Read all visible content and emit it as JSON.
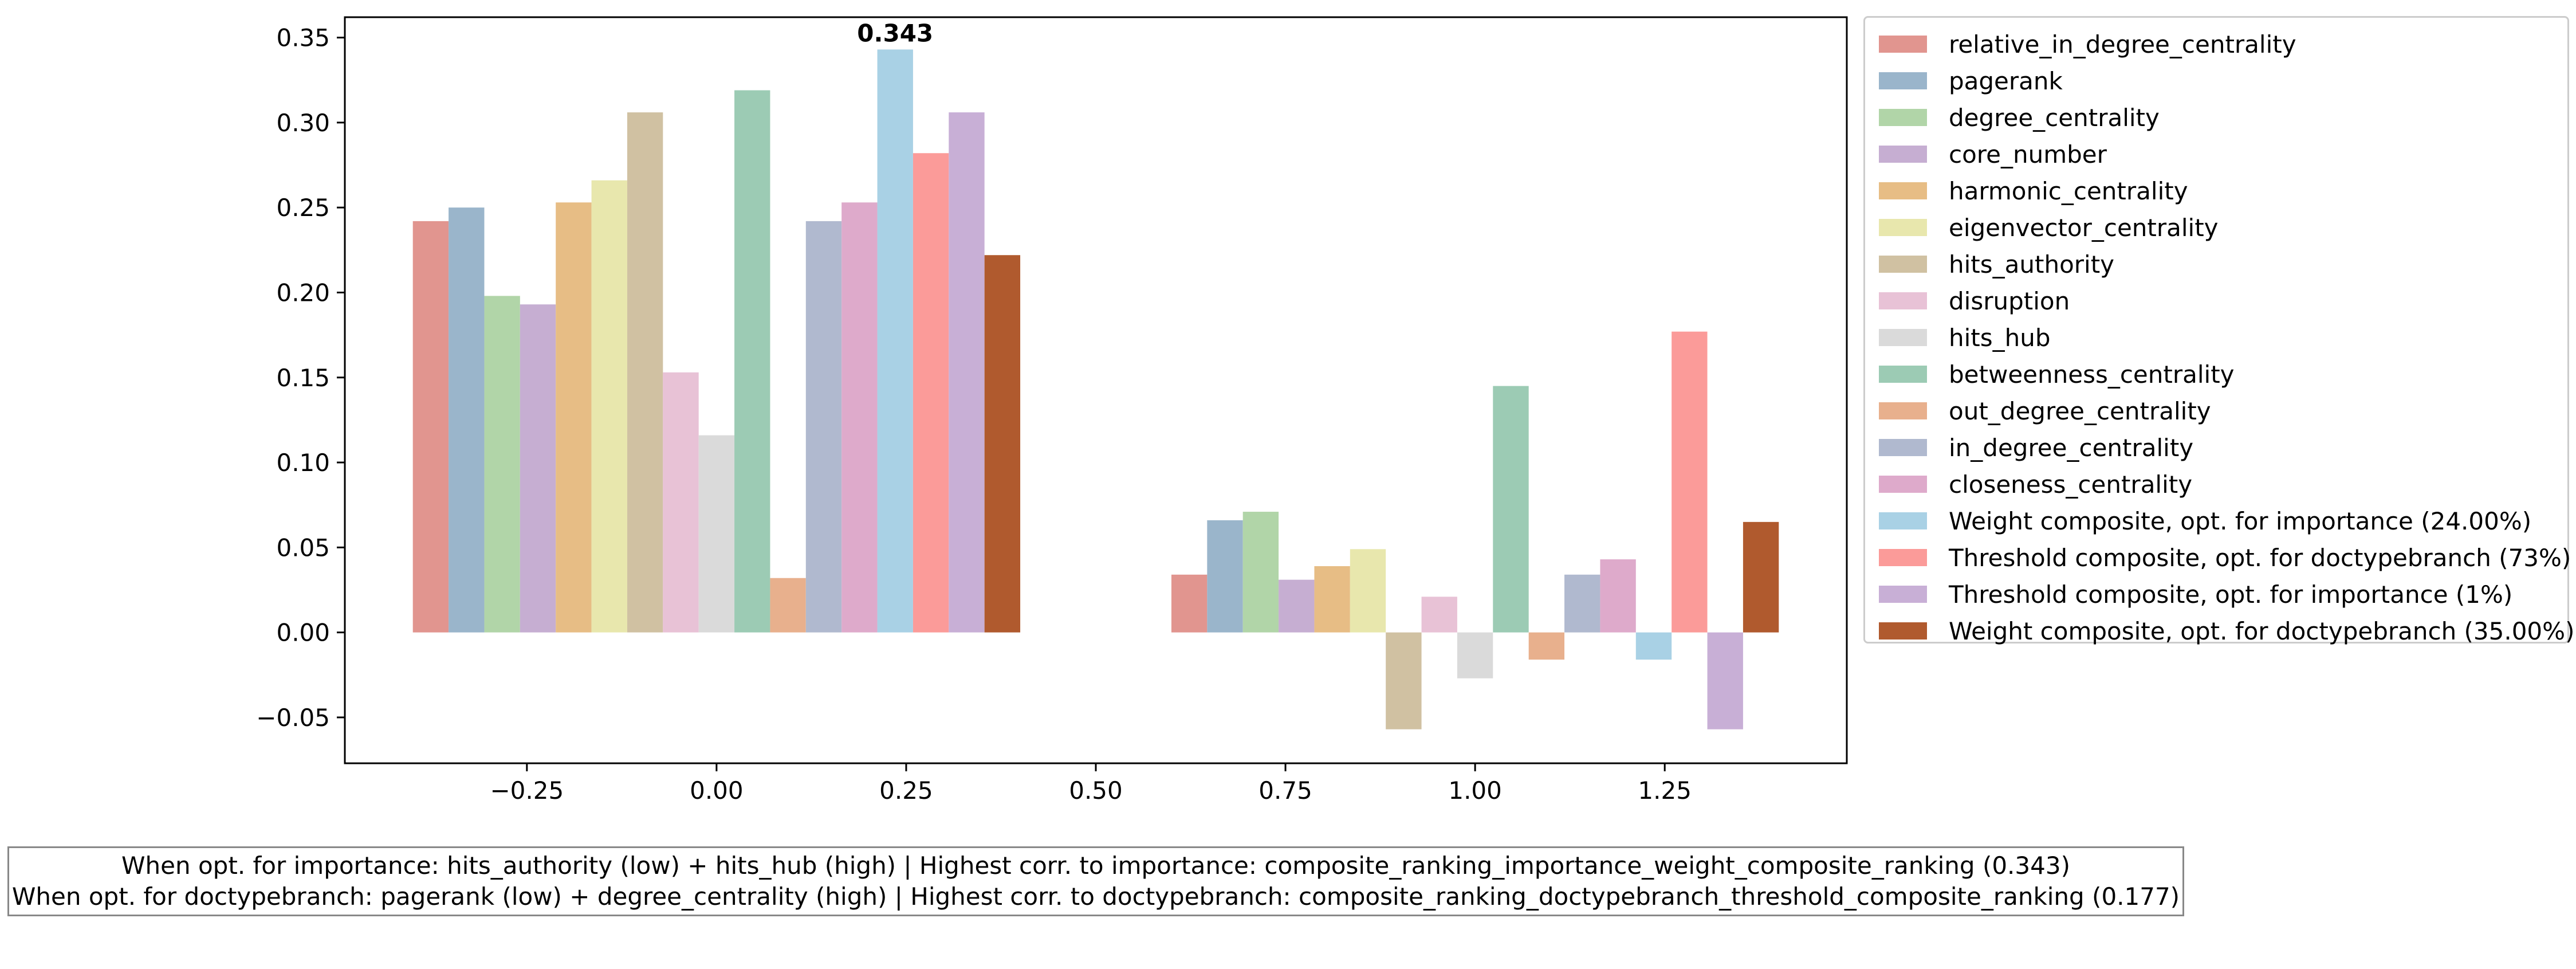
{
  "chart_data": {
    "type": "bar",
    "title": "",
    "xlabel": "",
    "ylabel": "",
    "grid": false,
    "legend_position": "outside-right",
    "xlim": [
      -0.49,
      1.49
    ],
    "ylim": [
      -0.077,
      0.362
    ],
    "xticks": [
      -0.25,
      0.0,
      0.25,
      0.5,
      0.75,
      1.0,
      1.25
    ],
    "xtick_labels": [
      "−0.25",
      "0.00",
      "0.25",
      "0.50",
      "0.75",
      "1.00",
      "1.25"
    ],
    "yticks": [
      -0.05,
      0.0,
      0.05,
      0.1,
      0.15,
      0.2,
      0.25,
      0.3,
      0.35
    ],
    "ytick_labels": [
      "−0.05",
      "0.00",
      "0.05",
      "0.10",
      "0.15",
      "0.20",
      "0.25",
      "0.30",
      "0.35"
    ],
    "group_centers": [
      0,
      1
    ],
    "bar_width": 0.0471,
    "series": [
      {
        "name": "relative_in_degree_centrality",
        "color": "#e1958f",
        "values": [
          0.242,
          0.034
        ]
      },
      {
        "name": "pagerank",
        "color": "#9ab5cb",
        "values": [
          0.25,
          0.066
        ]
      },
      {
        "name": "degree_centrality",
        "color": "#b1d5a8",
        "values": [
          0.198,
          0.071
        ]
      },
      {
        "name": "core_number",
        "color": "#c6aed2",
        "values": [
          0.193,
          0.031
        ]
      },
      {
        "name": "harmonic_centrality",
        "color": "#e7bd85",
        "values": [
          0.253,
          0.039
        ]
      },
      {
        "name": "eigenvector_centrality",
        "color": "#e8e7ad",
        "values": [
          0.266,
          0.049
        ]
      },
      {
        "name": "hits_authority",
        "color": "#d0c1a2",
        "values": [
          0.306,
          -0.057
        ]
      },
      {
        "name": "disruption",
        "color": "#e8c2d6",
        "values": [
          0.153,
          0.021
        ]
      },
      {
        "name": "hits_hub",
        "color": "#dadada",
        "values": [
          0.116,
          -0.027
        ]
      },
      {
        "name": "betweenness_centrality",
        "color": "#9ccbb4",
        "values": [
          0.319,
          0.145
        ]
      },
      {
        "name": "out_degree_centrality",
        "color": "#e8b08d",
        "values": [
          0.032,
          -0.016
        ]
      },
      {
        "name": "in_degree_centrality",
        "color": "#b0b9cf",
        "values": [
          0.242,
          0.034
        ]
      },
      {
        "name": "closeness_centrality",
        "color": "#deaacb",
        "values": [
          0.253,
          0.043
        ]
      },
      {
        "name": "Weight composite, opt. for importance (24.00%)",
        "color": "#a9d1e5",
        "values": [
          0.343,
          -0.016
        ]
      },
      {
        "name": "Threshold composite, opt. for doctypebranch (73%)",
        "color": "#fb9b99",
        "values": [
          0.282,
          0.177
        ]
      },
      {
        "name": "Threshold composite, opt. for importance (1%)",
        "color": "#c8afd6",
        "values": [
          0.306,
          -0.057
        ]
      },
      {
        "name": "Weight composite, opt. for doctypebranch (35.00%)",
        "color": "#b05a2e",
        "values": [
          0.222,
          0.065
        ]
      }
    ],
    "annotations": [
      {
        "text": "0.343",
        "series_index": 13,
        "group_index": 0,
        "bold": true
      }
    ]
  },
  "notes": {
    "line1": "When opt. for importance: hits_authority (low) + hits_hub (high) | Highest corr. to importance: composite_ranking_importance_weight_composite_ranking (0.343)",
    "line2": "When opt. for doctypebranch: pagerank (low) + degree_centrality (high) | Highest corr. to doctypebranch: composite_ranking_doctypebranch_threshold_composite_ranking (0.177)"
  }
}
